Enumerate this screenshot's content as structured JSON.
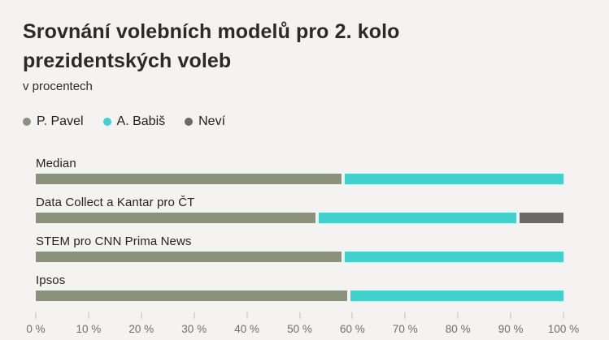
{
  "page": {
    "background": "#f4f3f1"
  },
  "header": {
    "title": "Srovnání volebních modelů pro 2. kolo prezidentských voleb",
    "subtitle": "v procentech"
  },
  "chart_data": {
    "type": "bar",
    "orientation": "horizontal",
    "stacked": true,
    "title": "Srovnání volebních modelů pro 2. kolo prezidentských voleb",
    "subtitle": "v procentech",
    "unit": "%",
    "categories": [
      "Median",
      "Data Collect a Kantar pro ČT",
      "STEM pro CNN Prima News",
      "Ipsos"
    ],
    "series": [
      {
        "name": "P. Pavel",
        "color": "#8a927c",
        "values": [
          58,
          53,
          58,
          59
        ]
      },
      {
        "name": "A. Babiš",
        "color": "#42d2cd",
        "values": [
          42,
          38,
          42,
          41
        ]
      },
      {
        "name": "Neví",
        "color": "#6d6966",
        "values": [
          0,
          9,
          0,
          0
        ]
      }
    ],
    "xlim": [
      0,
      100
    ],
    "x_ticks": [
      "0 %",
      "10 %",
      "20 %",
      "30 %",
      "40 %",
      "50 %",
      "60 %",
      "70 %",
      "80 %",
      "90 %",
      "100 %"
    ],
    "legend_position": "top",
    "grid": false,
    "tick_color": "#d8d8d5",
    "axis_label_color": "#6e6e6e"
  }
}
